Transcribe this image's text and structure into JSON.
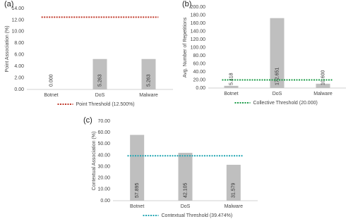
{
  "chart_data": [
    {
      "type": "bar",
      "panel_label": "(a)",
      "y_label": "Point Association (%)",
      "categories": [
        "Botnet",
        "DoS",
        "Malware"
      ],
      "series": [
        {
          "name": "Point Association",
          "color": "#bfbfbf",
          "values": [
            0,
            5.263,
            5.263
          ],
          "value_labels": [
            "0.000",
            "5.263",
            "5.263"
          ]
        }
      ],
      "threshold": {
        "name": "Point Threshold (12.500%)",
        "value": 12.5,
        "color": "#c0392b"
      },
      "ylim": [
        0,
        14
      ],
      "yticks": [
        {
          "value": 0,
          "label": "0.00"
        },
        {
          "value": 2,
          "label": "2.00"
        },
        {
          "value": 4,
          "label": "4.00"
        },
        {
          "value": 6,
          "label": "6.00"
        },
        {
          "value": 8,
          "label": "8.00"
        },
        {
          "value": 10,
          "label": "10.00"
        },
        {
          "value": 12,
          "label": "12.00"
        },
        {
          "value": 14,
          "label": "14.00"
        }
      ],
      "grid": false
    },
    {
      "type": "bar",
      "panel_label": "(b)",
      "y_label": "Avg. Number of Repetitions",
      "categories": [
        "Botnet",
        "DoS",
        "Malware"
      ],
      "series": [
        {
          "name": "Avg. Number of Repetitions",
          "color": "#bfbfbf",
          "values": [
            5.418,
            172.651,
            10.6
          ],
          "value_labels": [
            "5.418",
            "172.651",
            "10.600"
          ]
        }
      ],
      "threshold": {
        "name": "Collective Threshold (20.000)",
        "value": 20,
        "color": "#1e9e4a"
      },
      "ylim": [
        0,
        200
      ],
      "yticks": [
        {
          "value": 0,
          "label": "0.00"
        },
        {
          "value": 20,
          "label": "20.00"
        },
        {
          "value": 40,
          "label": "40.00"
        },
        {
          "value": 60,
          "label": "60.00"
        },
        {
          "value": 80,
          "label": "80.00"
        },
        {
          "value": 100,
          "label": "100.00"
        },
        {
          "value": 120,
          "label": "120.00"
        },
        {
          "value": 140,
          "label": "140.00"
        },
        {
          "value": 160,
          "label": "160.00"
        },
        {
          "value": 180,
          "label": "180.00"
        },
        {
          "value": 200,
          "label": "200.00"
        }
      ],
      "grid": false
    },
    {
      "type": "bar",
      "panel_label": "(c)",
      "y_label": "Contextual Association (%)",
      "categories": [
        "Botnet",
        "DoS",
        "Malware"
      ],
      "series": [
        {
          "name": "Contextual Association",
          "color": "#bfbfbf",
          "values": [
            57.895,
            42.105,
            31.579
          ],
          "value_labels": [
            "57.895",
            "42.105",
            "31.579"
          ]
        }
      ],
      "threshold": {
        "name": "Contextual Threshold (39.474%)",
        "value": 39.474,
        "color": "#22a6b3"
      },
      "ylim": [
        0,
        70
      ],
      "yticks": [
        {
          "value": 0,
          "label": "0.00"
        },
        {
          "value": 10,
          "label": "10.00"
        },
        {
          "value": 20,
          "label": "20.00"
        },
        {
          "value": 30,
          "label": "30.00"
        },
        {
          "value": 40,
          "label": "40.00"
        },
        {
          "value": 50,
          "label": "50.00"
        },
        {
          "value": 60,
          "label": "60.00"
        },
        {
          "value": 70,
          "label": "70.00"
        }
      ],
      "grid": false
    }
  ]
}
